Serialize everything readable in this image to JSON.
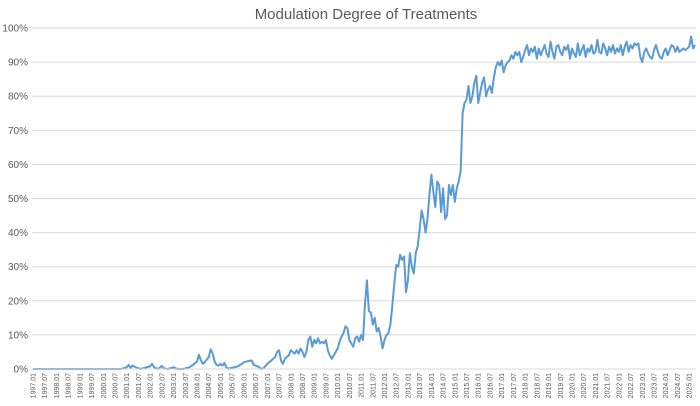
{
  "chart_data": {
    "type": "line",
    "title": "Modulation Degree of Treatments",
    "xlabel": "",
    "ylabel": "",
    "x_tick_labels": [
      "1997.01",
      "1997.07",
      "1998.01",
      "1998.07",
      "1999.01",
      "1999.07",
      "2000.01",
      "2000.07",
      "2001.01",
      "2001.07",
      "2002.01",
      "2002.07",
      "2003.01",
      "2003.07",
      "2004.01",
      "2004.07",
      "2005.01",
      "2005.07",
      "2006.01",
      "2006.07",
      "2007.01",
      "2007.07",
      "2008.01",
      "2008.07",
      "2009.01",
      "2009.07",
      "2010.01",
      "2010.07",
      "2011.01",
      "2011.07",
      "2012.01",
      "2012.07",
      "2013.01",
      "2013.07",
      "2014.01",
      "2014.07",
      "2015.01",
      "2015.07",
      "2016.01",
      "2016.07",
      "2017.01",
      "2017.07",
      "2018.01",
      "2018.07",
      "2019.01",
      "2019.07",
      "2020.01",
      "2020.07",
      "2021.01",
      "2021.07",
      "2022.01",
      "2022.07",
      "2023.01",
      "2023.07",
      "2024.01",
      "2024.07",
      "2025.01"
    ],
    "y_tick_labels": [
      "0%",
      "10%",
      "20%",
      "30%",
      "40%",
      "50%",
      "60%",
      "70%",
      "80%",
      "90%",
      "100%"
    ],
    "ylim": [
      0,
      100
    ],
    "x_start": "1997.01",
    "x_end": "2025.04",
    "gridlines": true,
    "legend": "none",
    "line_color": "#5b9bd5",
    "series": [
      {
        "points": [
          [
            "1997.01",
            0
          ],
          [
            "1998.01",
            0
          ],
          [
            "1999.01",
            0
          ],
          [
            "2000.01",
            0
          ],
          [
            "2000.10",
            0
          ],
          [
            "2001.01",
            0.5
          ],
          [
            "2001.02",
            1.2
          ],
          [
            "2001.03",
            0.3
          ],
          [
            "2001.04",
            1.0
          ],
          [
            "2001.06",
            0.4
          ],
          [
            "2001.08",
            0
          ],
          [
            "2001.10",
            0.3
          ],
          [
            "2002.01",
            0.8
          ],
          [
            "2002.02",
            1.5
          ],
          [
            "2002.03",
            0.5
          ],
          [
            "2002.05",
            0
          ],
          [
            "2002.07",
            0.9
          ],
          [
            "2002.08",
            0.2
          ],
          [
            "2002.10",
            0
          ],
          [
            "2003.01",
            0.5
          ],
          [
            "2003.03",
            0
          ],
          [
            "2003.06",
            0
          ],
          [
            "2003.09",
            0.5
          ],
          [
            "2003.11",
            1.2
          ],
          [
            "2004.01",
            2.2
          ],
          [
            "2004.02",
            4.2
          ],
          [
            "2004.03",
            2.5
          ],
          [
            "2004.04",
            1.5
          ],
          [
            "2004.05",
            2.0
          ],
          [
            "2004.06",
            2.8
          ],
          [
            "2004.07",
            3.5
          ],
          [
            "2004.08",
            5.8
          ],
          [
            "2004.09",
            4.5
          ],
          [
            "2004.10",
            2.2
          ],
          [
            "2004.11",
            1.2
          ],
          [
            "2004.12",
            1.0
          ],
          [
            "2005.01",
            1.5
          ],
          [
            "2005.02",
            1.0
          ],
          [
            "2005.03",
            1.8
          ],
          [
            "2005.04",
            0.5
          ],
          [
            "2005.05",
            0
          ],
          [
            "2005.06",
            0.3
          ],
          [
            "2005.08",
            0.5
          ],
          [
            "2005.10",
            0.8
          ],
          [
            "2005.12",
            1.5
          ],
          [
            "2006.01",
            2.0
          ],
          [
            "2006.03",
            2.3
          ],
          [
            "2006.05",
            2.5
          ],
          [
            "2006.06",
            1.2
          ],
          [
            "2006.08",
            0.8
          ],
          [
            "2006.10",
            0
          ],
          [
            "2006.11",
            0.2
          ],
          [
            "2007.01",
            1.5
          ],
          [
            "2007.03",
            2.5
          ],
          [
            "2007.05",
            3.5
          ],
          [
            "2007.06",
            5.0
          ],
          [
            "2007.07",
            5.5
          ],
          [
            "2007.08",
            2.5
          ],
          [
            "2007.09",
            1.5
          ],
          [
            "2007.10",
            3.0
          ],
          [
            "2007.11",
            3.5
          ],
          [
            "2007.12",
            4.0
          ],
          [
            "2008.01",
            5.5
          ],
          [
            "2008.02",
            5.0
          ],
          [
            "2008.03",
            4.5
          ],
          [
            "2008.04",
            5.5
          ],
          [
            "2008.05",
            4.5
          ],
          [
            "2008.06",
            6.0
          ],
          [
            "2008.07",
            5.0
          ],
          [
            "2008.08",
            3.5
          ],
          [
            "2008.09",
            5.0
          ],
          [
            "2008.10",
            8.5
          ],
          [
            "2008.11",
            9.5
          ],
          [
            "2008.12",
            6.5
          ],
          [
            "2009.01",
            8.5
          ],
          [
            "2009.02",
            7.5
          ],
          [
            "2009.03",
            9.0
          ],
          [
            "2009.04",
            7.5
          ],
          [
            "2009.05",
            8.0
          ],
          [
            "2009.06",
            7.5
          ],
          [
            "2009.07",
            8.5
          ],
          [
            "2009.08",
            5.5
          ],
          [
            "2009.09",
            4.0
          ],
          [
            "2009.10",
            3.0
          ],
          [
            "2009.11",
            4.0
          ],
          [
            "2009.12",
            5.0
          ],
          [
            "2010.01",
            6.0
          ],
          [
            "2010.02",
            8.0
          ],
          [
            "2010.03",
            9.5
          ],
          [
            "2010.04",
            10.5
          ],
          [
            "2010.05",
            12.5
          ],
          [
            "2010.06",
            12.0
          ],
          [
            "2010.07",
            8.5
          ],
          [
            "2010.08",
            7.5
          ],
          [
            "2010.09",
            6.5
          ],
          [
            "2010.10",
            9.0
          ],
          [
            "2010.11",
            9.5
          ],
          [
            "2010.12",
            8.0
          ],
          [
            "2011.01",
            10.0
          ],
          [
            "2011.02",
            8.5
          ],
          [
            "2011.03",
            19.0
          ],
          [
            "2011.04",
            26.0
          ],
          [
            "2011.05",
            17.0
          ],
          [
            "2011.06",
            16.5
          ],
          [
            "2011.07",
            13.0
          ],
          [
            "2011.08",
            15.0
          ],
          [
            "2011.09",
            11.0
          ],
          [
            "2011.10",
            12.0
          ],
          [
            "2011.11",
            9.5
          ],
          [
            "2011.12",
            6.0
          ],
          [
            "2012.01",
            8.5
          ],
          [
            "2012.02",
            10.0
          ],
          [
            "2012.03",
            10.5
          ],
          [
            "2012.04",
            13.0
          ],
          [
            "2012.05",
            18.5
          ],
          [
            "2012.06",
            25.0
          ],
          [
            "2012.07",
            30.5
          ],
          [
            "2012.08",
            30.0
          ],
          [
            "2012.09",
            33.5
          ],
          [
            "2012.10",
            32.0
          ],
          [
            "2012.11",
            33.0
          ],
          [
            "2012.12",
            22.5
          ],
          [
            "2013.01",
            26.0
          ],
          [
            "2013.02",
            34.0
          ],
          [
            "2013.03",
            30.0
          ],
          [
            "2013.04",
            28.0
          ],
          [
            "2013.05",
            34.0
          ],
          [
            "2013.06",
            36.0
          ],
          [
            "2013.07",
            41.0
          ],
          [
            "2013.08",
            46.5
          ],
          [
            "2013.09",
            44.0
          ],
          [
            "2013.10",
            40.0
          ],
          [
            "2013.11",
            44.0
          ],
          [
            "2013.12",
            51.0
          ],
          [
            "2014.01",
            57.0
          ],
          [
            "2014.02",
            52.0
          ],
          [
            "2014.03",
            47.5
          ],
          [
            "2014.04",
            55.0
          ],
          [
            "2014.05",
            54.0
          ],
          [
            "2014.06",
            46.0
          ],
          [
            "2014.07",
            53.0
          ],
          [
            "2014.08",
            44.0
          ],
          [
            "2014.09",
            45.0
          ],
          [
            "2014.10",
            54.0
          ],
          [
            "2014.11",
            51.0
          ],
          [
            "2014.12",
            54.0
          ],
          [
            "2015.01",
            49.0
          ],
          [
            "2015.02",
            53.0
          ],
          [
            "2015.03",
            55.0
          ],
          [
            "2015.04",
            58.0
          ],
          [
            "2015.05",
            75.0
          ],
          [
            "2015.06",
            78.0
          ],
          [
            "2015.07",
            79.0
          ],
          [
            "2015.08",
            83.0
          ],
          [
            "2015.09",
            78.0
          ],
          [
            "2015.10",
            80.0
          ],
          [
            "2015.11",
            84.0
          ],
          [
            "2015.12",
            86.0
          ],
          [
            "2016.01",
            78.0
          ],
          [
            "2016.02",
            81.0
          ],
          [
            "2016.03",
            84.0
          ],
          [
            "2016.04",
            85.5
          ],
          [
            "2016.05",
            80.0
          ],
          [
            "2016.06",
            82.0
          ],
          [
            "2016.07",
            83.0
          ],
          [
            "2016.08",
            81.0
          ],
          [
            "2016.09",
            85.5
          ],
          [
            "2016.10",
            88.5
          ],
          [
            "2016.11",
            90.0
          ],
          [
            "2016.12",
            89.0
          ],
          [
            "2017.01",
            90.5
          ],
          [
            "2017.02",
            87.0
          ],
          [
            "2017.03",
            89.0
          ],
          [
            "2017.04",
            90.0
          ],
          [
            "2017.05",
            90.5
          ],
          [
            "2017.06",
            92.0
          ],
          [
            "2017.07",
            91.0
          ],
          [
            "2017.08",
            93.0
          ],
          [
            "2017.09",
            92.0
          ],
          [
            "2017.10",
            93.0
          ],
          [
            "2017.11",
            90.0
          ],
          [
            "2017.12",
            91.5
          ],
          [
            "2018.01",
            93.5
          ],
          [
            "2018.02",
            95.0
          ],
          [
            "2018.03",
            92.0
          ],
          [
            "2018.04",
            94.0
          ],
          [
            "2018.05",
            93.0
          ],
          [
            "2018.06",
            94.5
          ],
          [
            "2018.07",
            91.0
          ],
          [
            "2018.08",
            94.0
          ],
          [
            "2018.09",
            92.0
          ],
          [
            "2018.10",
            93.5
          ],
          [
            "2018.11",
            95.0
          ],
          [
            "2018.12",
            92.5
          ],
          [
            "2019.01",
            91.5
          ],
          [
            "2019.02",
            96.0
          ],
          [
            "2019.03",
            93.0
          ],
          [
            "2019.04",
            91.0
          ],
          [
            "2019.05",
            94.5
          ],
          [
            "2019.06",
            95.0
          ],
          [
            "2019.07",
            93.0
          ],
          [
            "2019.08",
            92.0
          ],
          [
            "2019.09",
            94.5
          ],
          [
            "2019.10",
            93.5
          ],
          [
            "2019.11",
            95.0
          ],
          [
            "2019.12",
            91.0
          ],
          [
            "2020.01",
            94.0
          ],
          [
            "2020.02",
            92.5
          ],
          [
            "2020.03",
            91.5
          ],
          [
            "2020.04",
            95.5
          ],
          [
            "2020.05",
            92.0
          ],
          [
            "2020.06",
            93.5
          ],
          [
            "2020.07",
            95.0
          ],
          [
            "2020.08",
            91.5
          ],
          [
            "2020.09",
            94.0
          ],
          [
            "2020.10",
            93.0
          ],
          [
            "2020.11",
            95.0
          ],
          [
            "2020.12",
            92.5
          ],
          [
            "2021.01",
            93.0
          ],
          [
            "2021.02",
            96.5
          ],
          [
            "2021.03",
            93.0
          ],
          [
            "2021.04",
            92.5
          ],
          [
            "2021.05",
            95.5
          ],
          [
            "2021.06",
            94.0
          ],
          [
            "2021.07",
            92.0
          ],
          [
            "2021.08",
            94.5
          ],
          [
            "2021.09",
            93.0
          ],
          [
            "2021.10",
            95.0
          ],
          [
            "2021.11",
            92.5
          ],
          [
            "2021.12",
            94.0
          ],
          [
            "2022.01",
            93.0
          ],
          [
            "2022.02",
            95.0
          ],
          [
            "2022.03",
            92.0
          ],
          [
            "2022.04",
            94.5
          ],
          [
            "2022.05",
            96.0
          ],
          [
            "2022.06",
            93.0
          ],
          [
            "2022.07",
            95.0
          ],
          [
            "2022.08",
            94.0
          ],
          [
            "2022.09",
            95.5
          ],
          [
            "2022.10",
            95.0
          ],
          [
            "2022.11",
            95.5
          ],
          [
            "2022.12",
            91.5
          ],
          [
            "2023.01",
            90.0
          ],
          [
            "2023.02",
            93.0
          ],
          [
            "2023.03",
            94.0
          ],
          [
            "2023.04",
            92.5
          ],
          [
            "2023.05",
            91.5
          ],
          [
            "2023.06",
            91.0
          ],
          [
            "2023.07",
            93.5
          ],
          [
            "2023.08",
            95.0
          ],
          [
            "2023.09",
            93.0
          ],
          [
            "2023.10",
            91.5
          ],
          [
            "2023.11",
            91.0
          ],
          [
            "2023.12",
            93.0
          ],
          [
            "2024.01",
            94.0
          ],
          [
            "2024.02",
            92.0
          ],
          [
            "2024.03",
            93.5
          ],
          [
            "2024.04",
            95.0
          ],
          [
            "2024.05",
            94.5
          ],
          [
            "2024.06",
            93.0
          ],
          [
            "2024.07",
            94.5
          ],
          [
            "2024.08",
            93.0
          ],
          [
            "2024.09",
            93.5
          ],
          [
            "2024.10",
            94.0
          ],
          [
            "2024.11",
            93.5
          ],
          [
            "2024.12",
            94.0
          ],
          [
            "2025.01",
            94.5
          ],
          [
            "2025.02",
            97.5
          ],
          [
            "2025.03",
            94.0
          ],
          [
            "2025.04",
            95.0
          ]
        ]
      }
    ]
  }
}
